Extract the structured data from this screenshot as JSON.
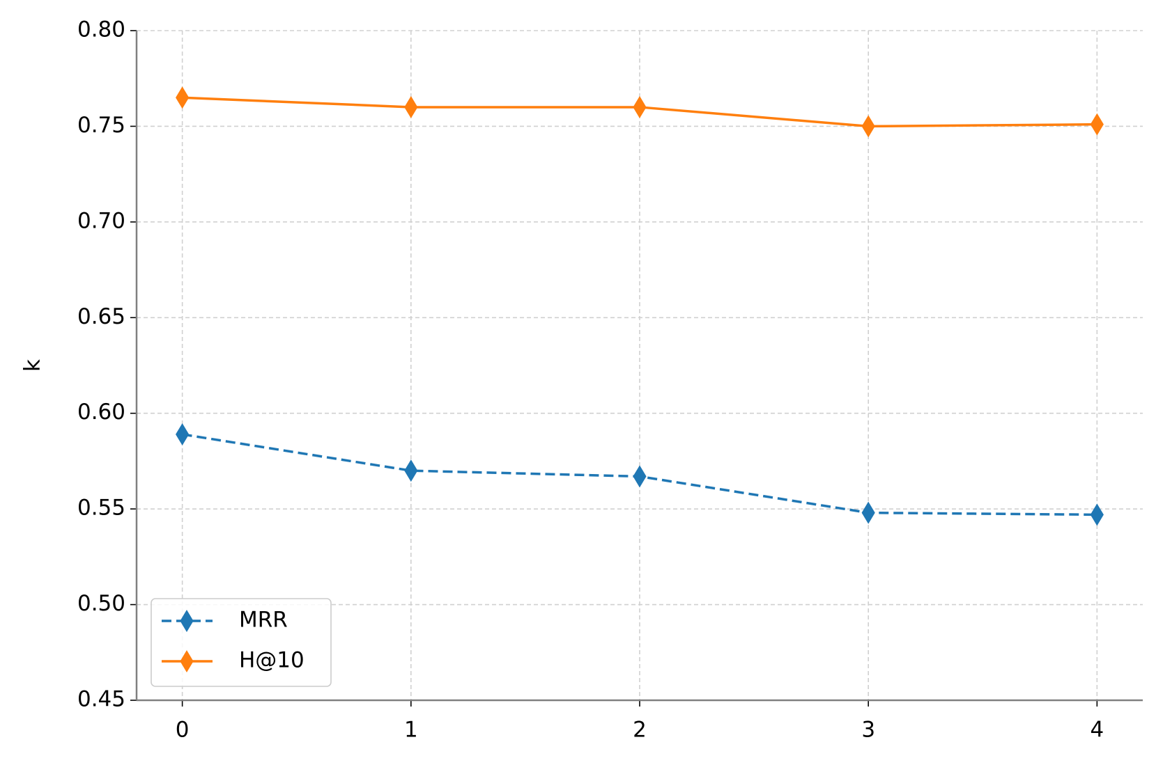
{
  "chart_data": {
    "type": "line",
    "ylabel": "k",
    "x": [
      0,
      1,
      2,
      3,
      4
    ],
    "series": [
      {
        "name": "MRR",
        "color": "#1f77b4",
        "linestyle": "dashed",
        "marker": "diamond",
        "values": [
          0.589,
          0.57,
          0.567,
          0.548,
          0.547
        ]
      },
      {
        "name": "H@10",
        "color": "#ff7f0e",
        "linestyle": "solid",
        "marker": "diamond",
        "values": [
          0.765,
          0.76,
          0.76,
          0.75,
          0.751
        ]
      }
    ],
    "xlim": [
      -0.2,
      4.2
    ],
    "xticks": [
      0,
      1,
      2,
      3,
      4
    ],
    "ylim": [
      0.45,
      0.8
    ],
    "yticks": [
      {
        "value": 0.45,
        "label": "0.45"
      },
      {
        "value": 0.5,
        "label": "0.50"
      },
      {
        "value": 0.55,
        "label": "0.55"
      },
      {
        "value": 0.6,
        "label": "0.60"
      },
      {
        "value": 0.65,
        "label": "0.65"
      },
      {
        "value": 0.7,
        "label": "0.70"
      },
      {
        "value": 0.75,
        "label": "0.75"
      },
      {
        "value": 0.8,
        "label": "0.80"
      }
    ],
    "grid": true,
    "legend": "lower left"
  }
}
